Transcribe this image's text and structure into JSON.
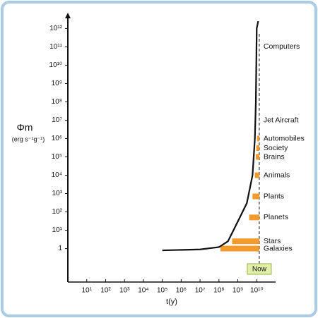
{
  "chart_data": {
    "type": "log-line-bands",
    "xscale": "log",
    "yscale": "log",
    "xlabel": "t(y)",
    "ylabel": "Φm",
    "ylabel_units": "(erg s⁻¹g⁻¹)",
    "xlim": [
      1,
      100000000000.0
    ],
    "ylim": [
      0.015,
      3000000000000.0
    ],
    "xticks": [
      {
        "value": 10,
        "label": "10¹"
      },
      {
        "value": 100,
        "label": "10²"
      },
      {
        "value": 1000,
        "label": "10³"
      },
      {
        "value": 10000,
        "label": "10⁴"
      },
      {
        "value": 100000,
        "label": "10⁵"
      },
      {
        "value": 1000000,
        "label": "10⁶"
      },
      {
        "value": 10000000,
        "label": "10⁷"
      },
      {
        "value": 100000000,
        "label": "10⁸"
      },
      {
        "value": 1000000000,
        "label": "10⁹"
      },
      {
        "value": 10000000000,
        "label": "10¹⁰"
      }
    ],
    "yticks": [
      1,
      {
        "value": 10,
        "label": "10¹"
      },
      {
        "value": 100,
        "label": "10²"
      },
      {
        "value": 1000,
        "label": "10³"
      },
      {
        "value": 10000,
        "label": "10⁴"
      },
      {
        "value": 100000,
        "label": "10⁵"
      },
      {
        "value": 1000000,
        "label": "10⁶"
      },
      {
        "value": 10000000,
        "label": "10⁷"
      },
      {
        "value": 100000000,
        "label": "10⁸"
      },
      {
        "value": 1000000000,
        "label": "10⁹"
      },
      {
        "value": 10000000000,
        "label": "10¹⁰"
      },
      {
        "value": 100000000000,
        "label": "10¹¹"
      },
      {
        "value": 1000000000000,
        "label": "10¹²"
      }
    ],
    "curve": {
      "color": "#111111",
      "x": [
        100000,
        10000000,
        100000000,
        300000000,
        1000000000,
        3000000000,
        6000000000,
        8000000000,
        9000000000,
        10000000000,
        12000000000
      ],
      "values": [
        0.8,
        0.9,
        1.2,
        2.5,
        30,
        300,
        10000,
        1000000,
        100000000,
        1000000000000,
        2500000000000
      ]
    },
    "now": {
      "label": "Now",
      "value": 13700000000
    },
    "band_color": "#f39a2b",
    "bands": [
      {
        "label": "Computers",
        "value": 100000000000
      },
      {
        "label": "Jet Aircraft",
        "value": 10000000
      },
      {
        "label": "Automobiles",
        "value": 1000000,
        "start": 10500000000
      },
      {
        "label": "Society",
        "value": 300000,
        "start": 9500000000
      },
      {
        "label": "Brains",
        "value": 100000,
        "start": 9000000000
      },
      {
        "label": "Animals",
        "value": 10000,
        "start": 8000000000
      },
      {
        "label": "Plants",
        "value": 700,
        "start": 6000000000
      },
      {
        "label": "Planets",
        "value": 50,
        "start": 4000000000
      },
      {
        "label": "Stars",
        "value": 2.5,
        "start": 500000000
      },
      {
        "label": "Galaxies",
        "value": 1,
        "start": 120000000
      }
    ]
  }
}
